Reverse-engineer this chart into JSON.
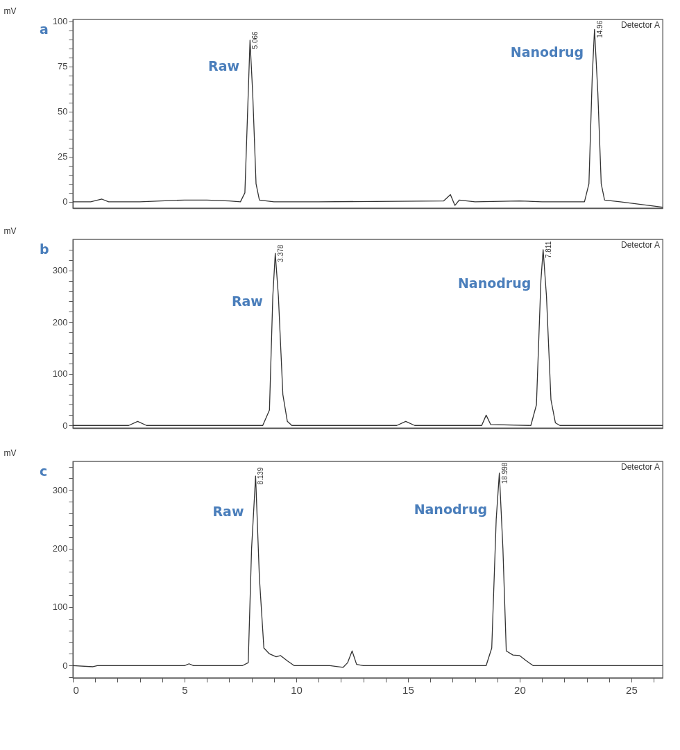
{
  "chart_data": [
    {
      "type": "line",
      "title": "a",
      "ylabel": "mV",
      "x": [
        0,
        0.8,
        1.3,
        1.6,
        3,
        5,
        6,
        7,
        7.5,
        7.7,
        7.85,
        7.93,
        8.05,
        8.2,
        8.35,
        9,
        11,
        16.6,
        16.9,
        17.1,
        17.3,
        18,
        20,
        21,
        22.9,
        23.1,
        23.25,
        23.35,
        23.5,
        23.65,
        23.8,
        24.5,
        26.4
      ],
      "series": [
        {
          "color": "#333333",
          "values": [
            0,
            0,
            1.5,
            0,
            0,
            1,
            1,
            0.5,
            0,
            5,
            60,
            89.5,
            60,
            10,
            1,
            0,
            0,
            0.5,
            4,
            -2,
            1,
            0,
            0.5,
            0,
            0,
            10,
            70,
            95.5,
            60,
            10,
            1,
            0,
            -3
          ]
        }
      ],
      "annotations": [
        {
          "text": "Raw",
          "x": 7.89,
          "y": 74.75
        },
        {
          "text": "Nanodrug",
          "x": 23.3,
          "y": 82.75
        },
        {
          "text": "5.066",
          "x": 7.93,
          "y": 89.5
        },
        {
          "text": "14.96",
          "x": 23.35,
          "y": 95.5
        },
        "Detector A"
      ],
      "xlim": [
        0,
        26.4
      ],
      "ylim": [
        -3.5,
        101
      ],
      "yticks": [
        0,
        {
          "value": 5,
          "label": null
        },
        {
          "value": 10,
          "label": null
        },
        {
          "value": 15,
          "label": null
        },
        {
          "value": 20,
          "label": null
        },
        25,
        {
          "value": 30,
          "label": null
        },
        {
          "value": 35,
          "label": null
        },
        {
          "value": 40,
          "label": null
        },
        {
          "value": 45,
          "label": null
        },
        50,
        {
          "value": 55,
          "label": null
        },
        {
          "value": 60,
          "label": null
        },
        {
          "value": 65,
          "label": null
        },
        {
          "value": 70,
          "label": null
        },
        75,
        {
          "value": 80,
          "label": null
        },
        {
          "value": 85,
          "label": null
        },
        {
          "value": 90,
          "label": null
        },
        {
          "value": 95,
          "label": null
        },
        100
      ],
      "tick_labels": "y"
    },
    {
      "type": "line",
      "title": "b",
      "ylabel": "mV",
      "x": [
        0,
        2.5,
        2.9,
        3.3,
        8.5,
        8.8,
        8.95,
        9.06,
        9.2,
        9.4,
        9.6,
        9.8,
        14.5,
        14.9,
        15.3,
        18.3,
        18.5,
        18.7,
        20.5,
        20.75,
        20.95,
        21.05,
        21.2,
        21.4,
        21.6,
        21.8,
        26.4
      ],
      "series": [
        {
          "color": "#333333",
          "values": [
            0,
            0,
            8,
            0,
            0,
            30,
            250,
            333,
            250,
            60,
            8,
            0,
            0,
            8,
            0,
            0,
            20,
            2,
            0,
            40,
            280,
            340,
            250,
            50,
            5,
            0,
            0
          ]
        }
      ],
      "annotations": [
        {
          "text": "Raw",
          "x": 8.9425,
          "y": 239
        },
        {
          "text": "Nanodrug",
          "x": 20.945,
          "y": 274
        },
        {
          "text": "3.378",
          "x": 9.06,
          "y": 333
        },
        {
          "text": "7.811",
          "x": 21.05,
          "y": 340
        },
        "Detector A"
      ],
      "xlim": [
        0,
        26.4
      ],
      "ylim": [
        -5,
        360
      ],
      "yticks": [
        0,
        {
          "value": 20,
          "label": null
        },
        {
          "value": 40,
          "label": null
        },
        {
          "value": 60,
          "label": null
        },
        {
          "value": 80,
          "label": null
        },
        100,
        {
          "value": 120,
          "label": null
        },
        {
          "value": 140,
          "label": null
        },
        {
          "value": 160,
          "label": null
        },
        {
          "value": 180,
          "label": null
        },
        200,
        {
          "value": 220,
          "label": null
        },
        {
          "value": 240,
          "label": null
        },
        {
          "value": 260,
          "label": null
        },
        {
          "value": 280,
          "label": null
        },
        300,
        {
          "value": 320,
          "label": null
        },
        {
          "value": 340,
          "label": null
        }
      ],
      "tick_labels": "y"
    },
    {
      "type": "line",
      "title": "c",
      "ylabel": "mV",
      "x": [
        0,
        0.9,
        1.1,
        5,
        5.2,
        5.4,
        7.6,
        7.85,
        8.0,
        8.18,
        8.35,
        8.55,
        8.8,
        9.1,
        9.3,
        9.6,
        9.9,
        11.5,
        12.1,
        12.3,
        12.5,
        12.7,
        13,
        18.5,
        18.75,
        18.95,
        19.09,
        19.25,
        19.4,
        19.7,
        20.0,
        20.3,
        20.6,
        26.4
      ],
      "series": [
        {
          "color": "#333333",
          "values": [
            0,
            -2,
            0,
            0,
            3,
            0,
            0,
            5,
            200,
            324,
            150,
            30,
            20,
            15,
            17,
            8,
            0,
            0,
            -3,
            5,
            25,
            2,
            0,
            0,
            30,
            250,
            329,
            200,
            25,
            18,
            17,
            8,
            0,
            0
          ]
        }
      ],
      "annotations": [
        {
          "text": "Raw",
          "x": 8.09,
          "y": 262
        },
        {
          "text": "Nanodrug",
          "x": 18.978,
          "y": 265.8
        },
        {
          "text": "8.139",
          "x": 8.18,
          "y": 324
        },
        {
          "text": "18.998",
          "x": 19.09,
          "y": 329
        },
        "Detector A"
      ],
      "xlim": [
        0,
        26.4
      ],
      "xticks": [
        0,
        {
          "value": 1,
          "label": null
        },
        {
          "value": 2,
          "label": null
        },
        {
          "value": 3,
          "label": null
        },
        {
          "value": 4,
          "label": null
        },
        5,
        {
          "value": 6,
          "label": null
        },
        {
          "value": 7,
          "label": null
        },
        {
          "value": 8,
          "label": null
        },
        {
          "value": 9,
          "label": null
        },
        10,
        {
          "value": 11,
          "label": null
        },
        {
          "value": 12,
          "label": null
        },
        {
          "value": 13,
          "label": null
        },
        {
          "value": 14,
          "label": null
        },
        15,
        {
          "value": 16,
          "label": null
        },
        {
          "value": 17,
          "label": null
        },
        {
          "value": 18,
          "label": null
        },
        {
          "value": 19,
          "label": null
        },
        20,
        {
          "value": 21,
          "label": null
        },
        {
          "value": 22,
          "label": null
        },
        {
          "value": 23,
          "label": null
        },
        {
          "value": 24,
          "label": null
        },
        25,
        {
          "value": 26,
          "label": null
        }
      ],
      "ylim": [
        -21,
        349
      ],
      "yticks": [
        {
          "value": -20,
          "label": null
        },
        0,
        {
          "value": 20,
          "label": null
        },
        {
          "value": 40,
          "label": null
        },
        {
          "value": 60,
          "label": null
        },
        {
          "value": 80,
          "label": null
        },
        100,
        {
          "value": 120,
          "label": null
        },
        {
          "value": 140,
          "label": null
        },
        {
          "value": 160,
          "label": null
        },
        {
          "value": 180,
          "label": null
        },
        200,
        {
          "value": 220,
          "label": null
        },
        {
          "value": 240,
          "label": null
        },
        {
          "value": 260,
          "label": null
        },
        {
          "value": 280,
          "label": null
        },
        300,
        {
          "value": 320,
          "label": null
        },
        {
          "value": 340,
          "label": null
        }
      ]
    }
  ]
}
